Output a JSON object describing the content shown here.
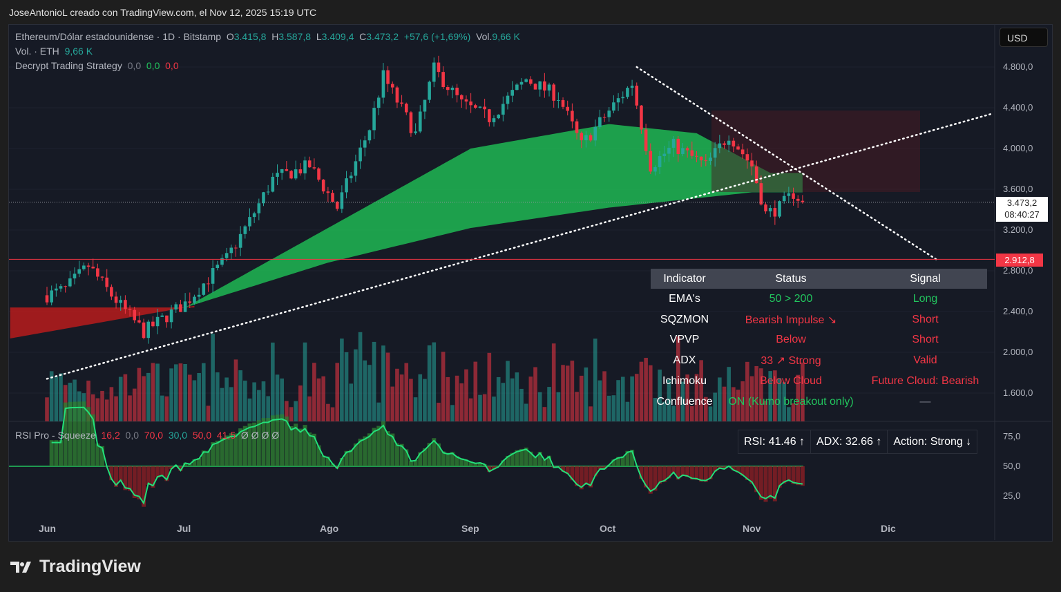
{
  "credit": "JoseAntonioL creado con TradingView.com, el Nov 12, 2025 15:19 UTC",
  "legend": {
    "symbol": "Ethereum/Dólar estadounidense · 1D · Bitstamp",
    "o_label": "O",
    "o": "3.415,8",
    "h_label": "H",
    "h": "3.587,8",
    "l_label": "L",
    "l": "3.409,4",
    "c_label": "C",
    "c": "3.473,2",
    "change": "+57,6 (+1,69%)",
    "vol_label": "Vol.",
    "vol": "9,66 K",
    "vol_line_label": "Vol. · ETH",
    "vol_line_value": "9,66 K",
    "strategy": "Decrypt Trading Strategy",
    "strat_v1": "0,0",
    "strat_v2": "0,0",
    "strat_v3": "0,0"
  },
  "currency": "USD",
  "price_tag": {
    "price": "3.473,2",
    "countdown": "08:40:27"
  },
  "level_tag": "2.912,8",
  "rsi_legend": {
    "name": "RSI Pro - Squeeze",
    "v1": "16,2",
    "v2": "0,0",
    "v3": "70,0",
    "v4": "30,0",
    "v5": "50,0",
    "v6": "41,5",
    "v7": "Ø Ø Ø Ø"
  },
  "table": {
    "headers": [
      "Indicator",
      "Status",
      "Signal"
    ],
    "rows": [
      {
        "indicator": "EMA's",
        "status": "50 > 200",
        "signal": "Long",
        "status_color": "#22c55e",
        "signal_color": "#22c55e"
      },
      {
        "indicator": "SQZMON",
        "status": "Bearish Impulse ↘",
        "signal": "Short",
        "status_color": "#f23645",
        "signal_color": "#f23645"
      },
      {
        "indicator": "VPVP",
        "status": "Below",
        "signal": "Short",
        "status_color": "#f23645",
        "signal_color": "#f23645"
      },
      {
        "indicator": "ADX",
        "status": "33 ↗ Strong",
        "signal": "Valid",
        "status_color": "#f23645",
        "signal_color": "#f23645"
      },
      {
        "indicator": "Ichimoku",
        "status": "Below Cloud",
        "signal": "Future Cloud: Bearish",
        "status_color": "#f23645",
        "signal_color": "#f23645"
      },
      {
        "indicator": "Confluence",
        "status": "ON (Kumo breakout only)",
        "signal": "—",
        "status_color": "#22c55e",
        "signal_color": "#787b86"
      }
    ]
  },
  "status_bar": {
    "rsi": "RSI: 41.46 ↑",
    "adx": "ADX: 32.66 ↑",
    "action": "Action: Strong ↓"
  },
  "brand": "TradingView",
  "colors": {
    "up": "#26a69a",
    "down": "#f23645",
    "ribbon": "#22c55e",
    "bg": "#161a25"
  },
  "chart_data": {
    "type": "candlestick",
    "price_axis": {
      "ticks": [
        "4.800,0",
        "4.400,0",
        "4.000,0",
        "3.600,0",
        "3.200,0",
        "2.800,0",
        "2.400,0",
        "2.000,0",
        "1.600,0"
      ],
      "range": [
        1450,
        4950
      ]
    },
    "time_axis": {
      "ticks": [
        "Jun",
        "Jul",
        "Ago",
        "Sep",
        "Oct",
        "Nov",
        "Dic"
      ]
    },
    "rsi_axis": {
      "ticks": [
        "75,0",
        "50,0",
        "25,0"
      ]
    },
    "closes": [
      [
        "2025-06-01",
        2560
      ],
      [
        "2025-06-05",
        2620
      ],
      [
        "2025-06-10",
        2850
      ],
      [
        "2025-06-15",
        2560
      ],
      [
        "2025-06-22",
        2200
      ],
      [
        "2025-07-01",
        2480
      ],
      [
        "2025-07-10",
        2920
      ],
      [
        "2025-07-15",
        3290
      ],
      [
        "2025-07-20",
        3700
      ],
      [
        "2025-07-28",
        3830
      ],
      [
        "2025-08-03",
        3420
      ],
      [
        "2025-08-10",
        4200
      ],
      [
        "2025-08-13",
        4710
      ],
      [
        "2025-08-20",
        4140
      ],
      [
        "2025-08-24",
        4780
      ],
      [
        "2025-08-30",
        4440
      ],
      [
        "2025-09-05",
        4300
      ],
      [
        "2025-09-13",
        4680
      ],
      [
        "2025-09-20",
        4510
      ],
      [
        "2025-09-25",
        4030
      ],
      [
        "2025-10-01",
        4370
      ],
      [
        "2025-10-06",
        4640
      ],
      [
        "2025-10-10",
        3830
      ],
      [
        "2025-10-15",
        4030
      ],
      [
        "2025-10-22",
        3830
      ],
      [
        "2025-10-27",
        4140
      ],
      [
        "2025-11-01",
        3830
      ],
      [
        "2025-11-04",
        3360
      ],
      [
        "2025-11-07",
        3420
      ],
      [
        "2025-11-10",
        3560
      ],
      [
        "2025-11-12",
        3473.2
      ]
    ],
    "ribbon_upper": [
      [
        "2025-06-01",
        2720
      ],
      [
        "2025-07-01",
        2440
      ],
      [
        "2025-08-01",
        3220
      ],
      [
        "2025-09-01",
        4000
      ],
      [
        "2025-10-01",
        4240
      ],
      [
        "2025-10-20",
        4150
      ],
      [
        "2025-11-05",
        3760
      ],
      [
        "2025-11-12",
        3760
      ]
    ],
    "ribbon_lower": [
      [
        "2025-06-01",
        2440
      ],
      [
        "2025-07-01",
        2440
      ],
      [
        "2025-08-01",
        2880
      ],
      [
        "2025-09-01",
        3220
      ],
      [
        "2025-10-01",
        3420
      ],
      [
        "2025-11-01",
        3570
      ],
      [
        "2025-11-12",
        3570
      ]
    ],
    "trendlines": [
      {
        "from": [
          "2025-06-01",
          1740
        ],
        "to": [
          "2025-12-23",
          4340
        ],
        "style": "dotted"
      },
      {
        "from": [
          "2025-10-07",
          4800
        ],
        "to": [
          "2025-12-11",
          2912.8
        ],
        "style": "dotted"
      }
    ],
    "horizontal_level": 2912.8,
    "last_price": 3473.2
  }
}
